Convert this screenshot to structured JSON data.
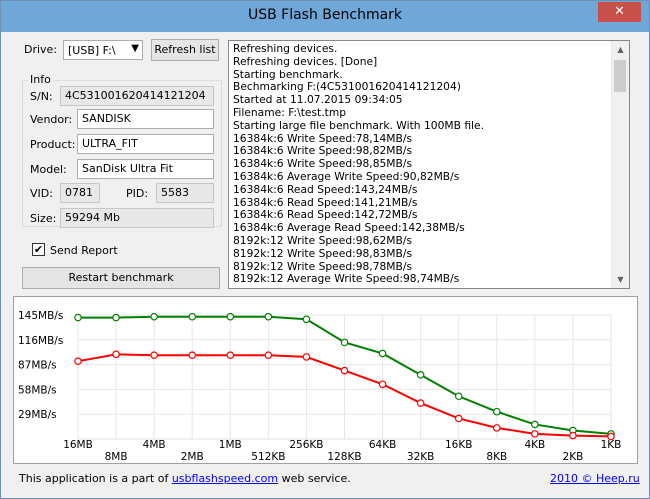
{
  "window": {
    "title": "USB Flash Benchmark",
    "close_label": "✕"
  },
  "drive": {
    "label": "Drive:",
    "selected": "[USB] F:\\",
    "refresh_label": "Refresh list"
  },
  "info": {
    "group_title": "Info",
    "sn_label": "S/N:",
    "sn_value": "4C531001620414121204",
    "vendor_label": "Vendor:",
    "vendor_value": "SANDISK",
    "product_label": "Product:",
    "product_value": "ULTRA_FIT",
    "model_label": "Model:",
    "model_value": "SanDisk Ultra Fit",
    "vid_label": "VID:",
    "vid_value": "0781",
    "pid_label": "PID:",
    "pid_value": "5583",
    "size_label": "Size:",
    "size_value": "59294 Mb"
  },
  "send_report": {
    "label": "Send Report",
    "checked": true
  },
  "restart_label": "Restart benchmark",
  "log": [
    "Refreshing devices.",
    "Refreshing devices. [Done]",
    "Starting benchmark.",
    "Bechmarking F:(4C531001620414121204)",
    "Started at 11.07.2015 09:34:05",
    "Filename: F:\\test.tmp",
    "Starting large file benchmark. With 100MB file.",
    "16384k:6 Write Speed:78,14MB/s",
    "16384k:6 Write Speed:98,82MB/s",
    "16384k:6 Write Speed:98,85MB/s",
    "16384k:6 Average Write Speed:90,82MB/s",
    "16384k:6 Read Speed:143,24MB/s",
    "16384k:6 Read Speed:141,21MB/s",
    "16384k:6 Read Speed:142,72MB/s",
    "16384k:6 Average Read Speed:142,38MB/s",
    "8192k:12 Write Speed:98,62MB/s",
    "8192k:12 Write Speed:98,83MB/s",
    "8192k:12 Write Speed:98,78MB/s",
    "8192k:12 Average Write Speed:98,74MB/s"
  ],
  "chart_data": {
    "type": "line",
    "categories": [
      "16MB",
      "8MB",
      "4MB",
      "2MB",
      "1MB",
      "512KB",
      "256KB",
      "128KB",
      "64KB",
      "32KB",
      "16KB",
      "8KB",
      "4KB",
      "2KB",
      "1KB"
    ],
    "y_ticks": [
      "145MB/s",
      "116MB/s",
      "87MB/s",
      "58MB/s",
      "29MB/s"
    ],
    "y_tick_values": [
      145,
      116,
      87,
      58,
      29
    ],
    "ylim": [
      0,
      145
    ],
    "grid": true,
    "series": [
      {
        "color": "#008000",
        "values": [
          142,
          142,
          143,
          143,
          143,
          143,
          140,
          113,
          100,
          75,
          50,
          32,
          17,
          10,
          6
        ]
      },
      {
        "color": "#ff0000",
        "values": [
          91,
          99,
          98,
          98,
          98,
          98,
          96,
          80,
          64,
          42,
          24,
          13,
          6,
          4,
          3
        ]
      }
    ]
  },
  "footer": {
    "prefix": "This application is a part of ",
    "link": "usbflashspeed.com",
    "suffix": " web service.",
    "copyright": "2010 © Heep.ru"
  }
}
